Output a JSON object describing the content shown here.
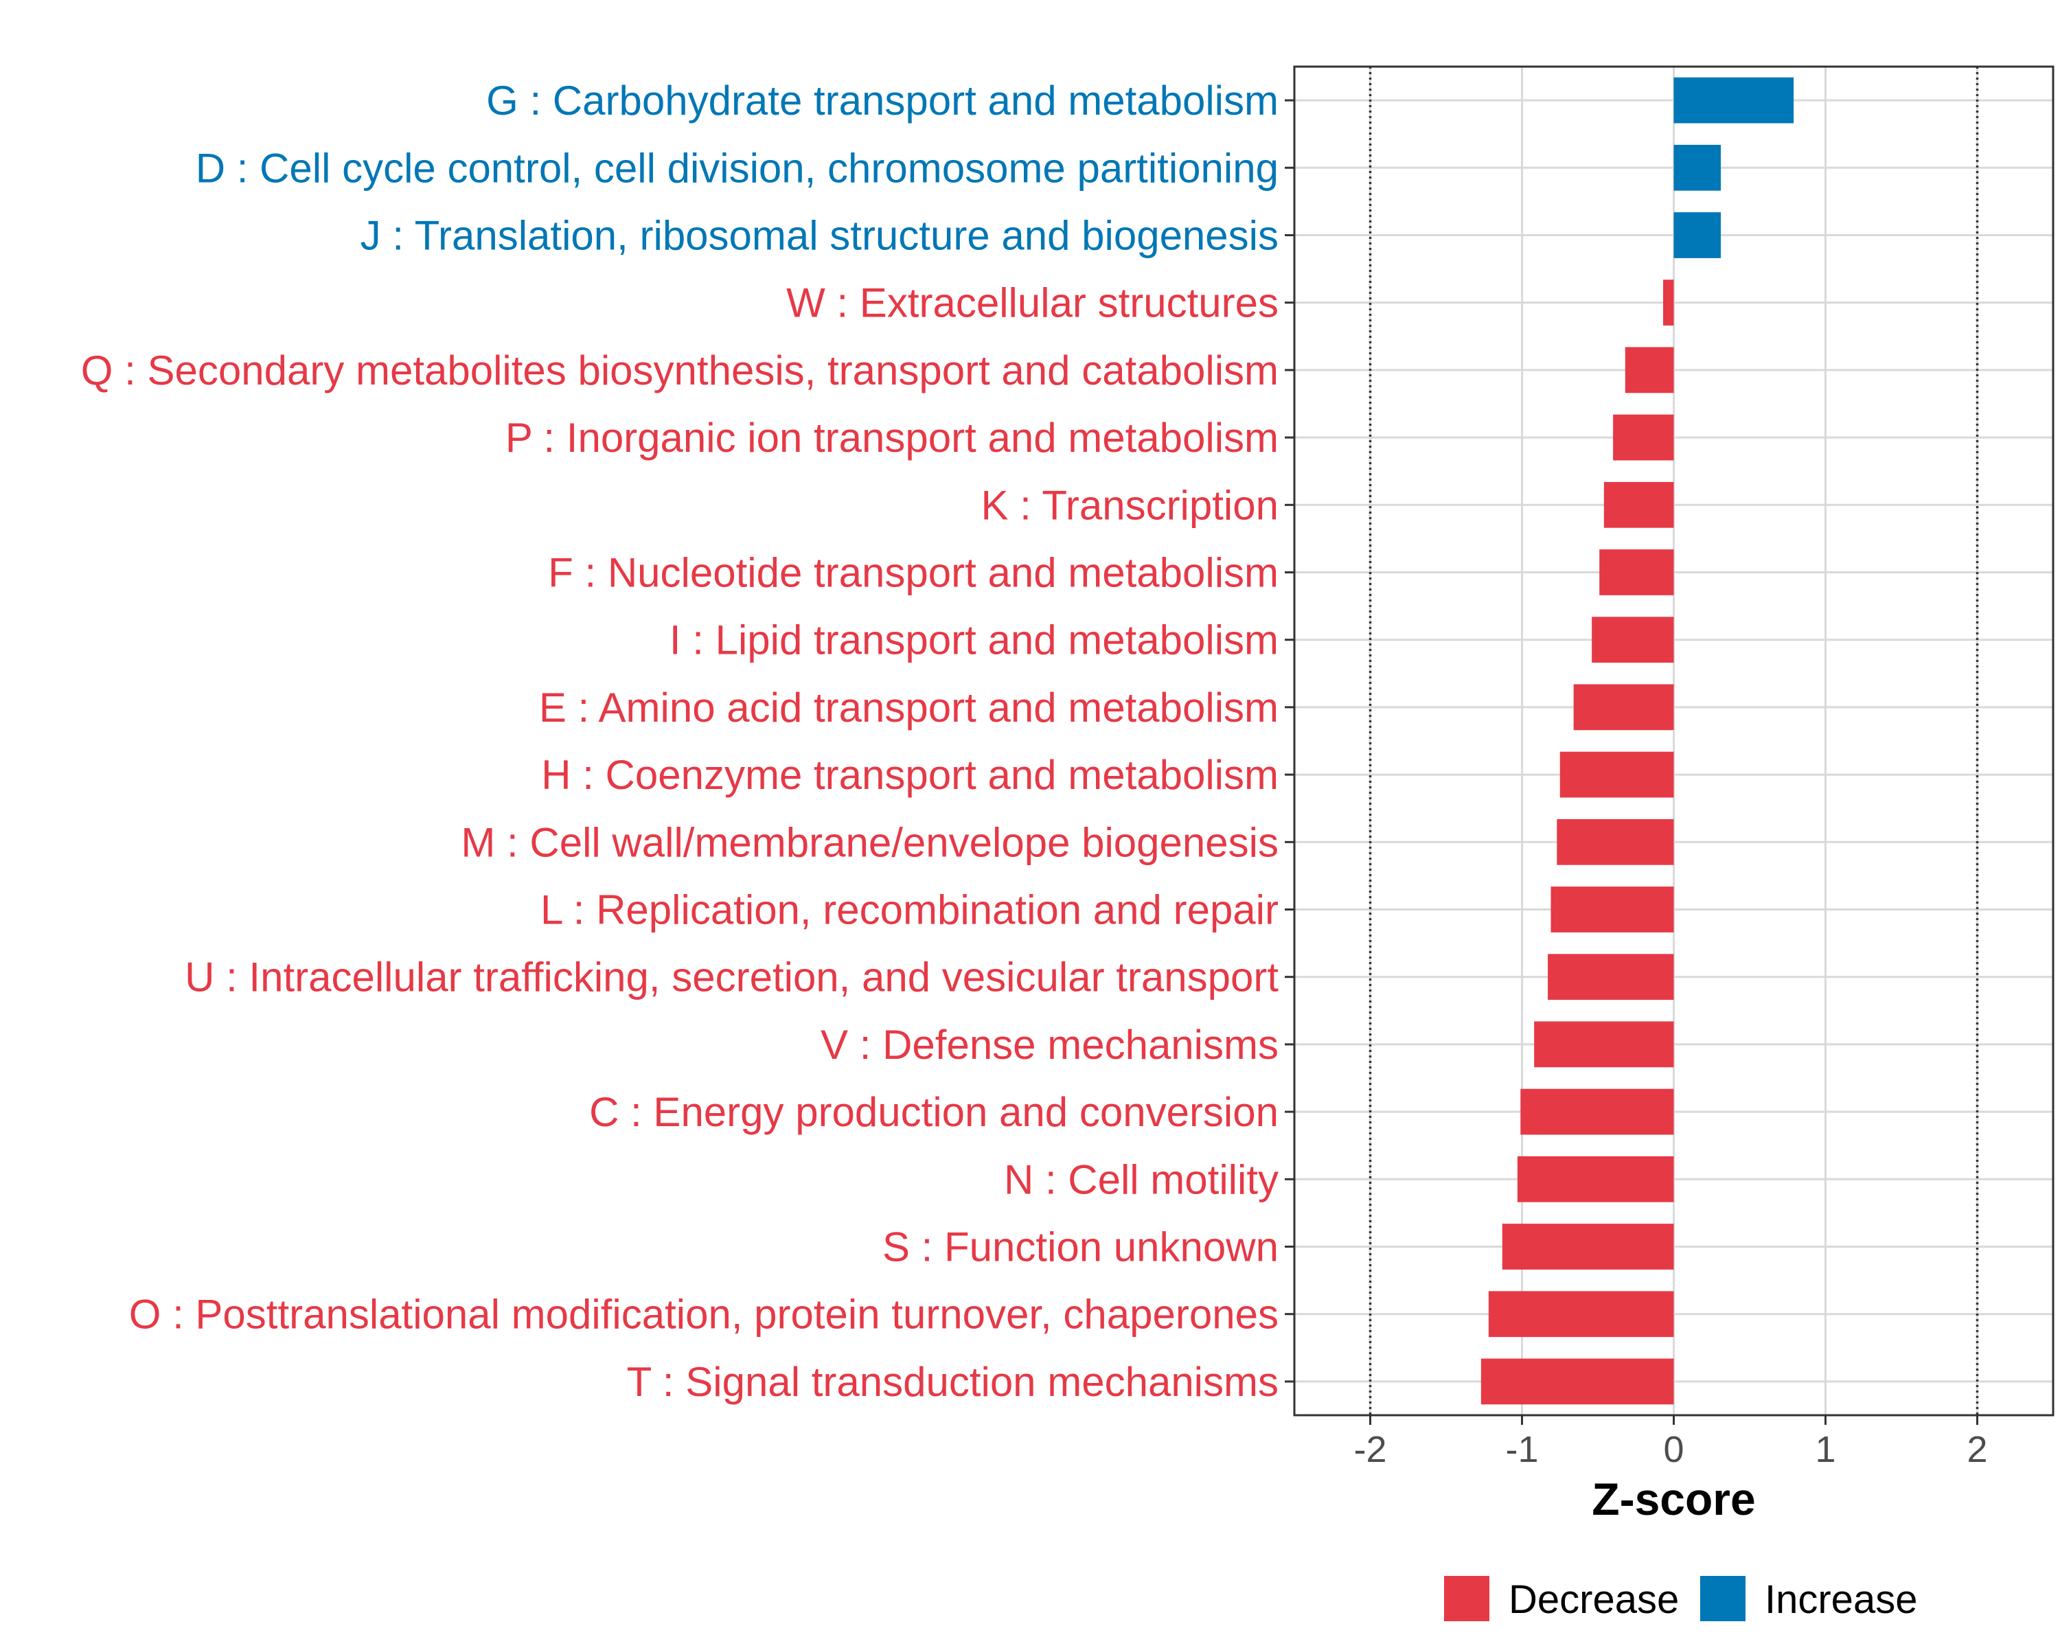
{
  "chart_data": {
    "type": "bar",
    "orientation": "horizontal",
    "categories": [
      "G : Carbohydrate transport and metabolism",
      "D : Cell cycle control, cell division, chromosome partitioning",
      "J : Translation, ribosomal structure and biogenesis",
      "W : Extracellular structures",
      "Q : Secondary metabolites biosynthesis, transport and catabolism",
      "P : Inorganic ion transport and metabolism",
      "K : Transcription",
      "F : Nucleotide transport and metabolism",
      "I : Lipid transport and metabolism",
      "E : Amino acid transport and metabolism",
      "H : Coenzyme transport and metabolism",
      "M : Cell wall/membrane/envelope biogenesis",
      "L : Replication, recombination and repair",
      "U : Intracellular trafficking, secretion, and vesicular transport",
      "V : Defense mechanisms",
      "C : Energy production and conversion",
      "N : Cell motility",
      "S : Function unknown",
      "O : Posttranslational modification, protein turnover, chaperones",
      "T : Signal transduction mechanisms"
    ],
    "values": [
      0.79,
      0.31,
      0.31,
      -0.07,
      -0.32,
      -0.4,
      -0.46,
      -0.49,
      -0.54,
      -0.66,
      -0.75,
      -0.77,
      -0.81,
      -0.83,
      -0.92,
      -1.01,
      -1.03,
      -1.13,
      -1.22,
      -1.27
    ],
    "groups": [
      "Increase",
      "Increase",
      "Increase",
      "Decrease",
      "Decrease",
      "Decrease",
      "Decrease",
      "Decrease",
      "Decrease",
      "Decrease",
      "Decrease",
      "Decrease",
      "Decrease",
      "Decrease",
      "Decrease",
      "Decrease",
      "Decrease",
      "Decrease",
      "Decrease",
      "Decrease"
    ],
    "xlabel": "Z-score",
    "ylabel": "",
    "xlim": [
      -2.5,
      2.5
    ],
    "xticks": [
      -2,
      -1,
      0,
      1,
      2
    ],
    "xtick_labels": [
      "-2",
      "-1",
      "0",
      "1",
      "2"
    ],
    "reference_lines": [
      -2,
      2
    ],
    "grid": true,
    "legend": {
      "position": "bottom",
      "entries": [
        {
          "label": "Decrease",
          "color": "#E63946"
        },
        {
          "label": "Increase",
          "color": "#0077B6"
        }
      ]
    },
    "colors": {
      "Decrease": "#E63946",
      "Increase": "#0077B6"
    }
  }
}
